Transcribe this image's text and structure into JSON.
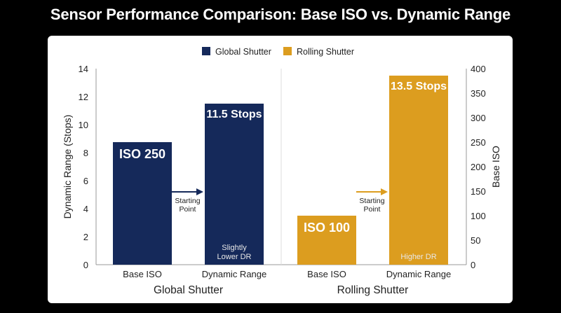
{
  "chart_data": {
    "type": "bar",
    "title": "Sensor Performance Comparison: Base ISO vs. Dynamic Range",
    "legend": {
      "placement": "top-center",
      "entries": [
        "Global Shutter",
        "Rolling Shutter"
      ]
    },
    "y_left": {
      "label": "Dynamic Range (Stops)",
      "range": [
        0,
        14
      ],
      "ticks": [
        0,
        2,
        4,
        6,
        8,
        10,
        12,
        14
      ]
    },
    "y_right": {
      "label": "Base ISO",
      "range": [
        0,
        400
      ],
      "ticks": [
        0,
        50,
        100,
        150,
        200,
        250,
        300,
        350,
        400
      ]
    },
    "groups": [
      {
        "name": "Global Shutter",
        "color": "#15295a",
        "arrow_label": [
          "Starting",
          "Point"
        ],
        "bars": [
          {
            "category": "Base ISO",
            "axis": "right",
            "value": 250,
            "label": "ISO 250",
            "note": []
          },
          {
            "category": "Dynamic Range",
            "axis": "left",
            "value": 11.5,
            "label": "11.5 Stops",
            "note": [
              "Slightly",
              "Lower DR"
            ]
          }
        ]
      },
      {
        "name": "Rolling Shutter",
        "color": "#dc9d1f",
        "arrow_label": [
          "Starting",
          "Point"
        ],
        "bars": [
          {
            "category": "Base ISO",
            "axis": "right",
            "value": 100,
            "label": "ISO 100",
            "note": []
          },
          {
            "category": "Dynamic Range",
            "axis": "left",
            "value": 13.5,
            "label": "13.5 Stops",
            "note": [
              "Higher DR"
            ]
          }
        ]
      }
    ],
    "grid": false
  }
}
